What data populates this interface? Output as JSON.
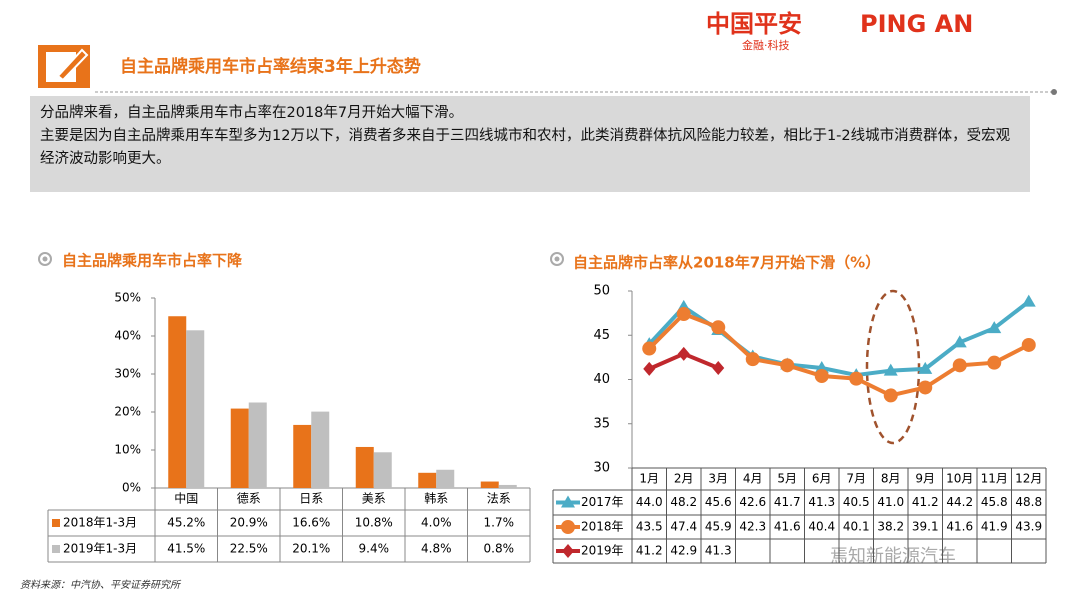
{
  "header": {
    "title": "自主品牌乘用车市占率结束3年上升态势",
    "logo_cn": "中国平安",
    "logo_en": "PING AN",
    "logo_sub": "金融·科技"
  },
  "summary": [
    "分品牌来看，自主品牌乘用车市占率在2018年7月开始大幅下滑。",
    "主要是因为自主品牌乘用车车型多为12万以下，消费者多来自于三四线城市和农村，此类消费群体抗风险能力较差，相比于1-2线城市消费群体，受宏观经济波动影响更大。"
  ],
  "chart_data": [
    {
      "type": "bar",
      "title": "自主品牌乘用车市占率下降",
      "categories": [
        "中国",
        "德系",
        "日系",
        "美系",
        "韩系",
        "法系"
      ],
      "series": [
        {
          "name": "2018年1-3月",
          "color": "#e8731a",
          "values": [
            45.2,
            20.9,
            16.6,
            10.8,
            4.0,
            1.7
          ],
          "value_labels": [
            "45.2%",
            "20.9%",
            "16.6%",
            "10.8%",
            "4.0%",
            "1.7%"
          ]
        },
        {
          "name": "2019年1-3月",
          "color": "#bfbfbf",
          "values": [
            41.5,
            22.5,
            20.1,
            9.4,
            4.8,
            0.8
          ],
          "value_labels": [
            "41.5%",
            "22.5%",
            "20.1%",
            "9.4%",
            "4.8%",
            "0.8%"
          ]
        }
      ],
      "ylim": [
        0,
        50
      ],
      "yticks": [
        {
          "value": 0,
          "label": "0%"
        },
        {
          "value": 10,
          "label": "10%"
        },
        {
          "value": 20,
          "label": "20%"
        },
        {
          "value": 30,
          "label": "30%"
        },
        {
          "value": 40,
          "label": "40%"
        },
        {
          "value": 50,
          "label": "50%"
        }
      ]
    },
    {
      "type": "line",
      "title": "自主品牌市占率从2018年7月开始下滑（%）",
      "categories": [
        "1月",
        "2月",
        "3月",
        "4月",
        "5月",
        "6月",
        "7月",
        "8月",
        "9月",
        "10月",
        "11月",
        "12月"
      ],
      "series": [
        {
          "name": "2017年",
          "color": "#4bacc6",
          "values": [
            44.0,
            48.2,
            45.6,
            42.6,
            41.7,
            41.3,
            40.5,
            41.0,
            41.2,
            44.2,
            45.8,
            48.8
          ],
          "value_labels": [
            "44.0",
            "48.2",
            "45.6",
            "42.6",
            "41.7",
            "41.3",
            "40.5",
            "41.0",
            "41.2",
            "44.2",
            "45.8",
            "48.8"
          ]
        },
        {
          "name": "2018年",
          "color": "#ed7d31",
          "values": [
            43.5,
            47.4,
            45.9,
            42.3,
            41.6,
            40.4,
            40.1,
            38.2,
            39.1,
            41.6,
            41.9,
            43.9
          ],
          "value_labels": [
            "43.5",
            "47.4",
            "45.9",
            "42.3",
            "41.6",
            "40.4",
            "40.1",
            "38.2",
            "39.1",
            "41.6",
            "41.9",
            "43.9"
          ]
        },
        {
          "name": "2019年",
          "color": "#c0282d",
          "values": [
            41.2,
            42.9,
            41.3,
            null,
            null,
            null,
            null,
            null,
            null,
            null,
            null,
            null
          ],
          "value_labels": [
            "41.2",
            "42.9",
            "41.3",
            null,
            null,
            null,
            null,
            null,
            null,
            null,
            null,
            null
          ]
        }
      ],
      "ylim": [
        30,
        50
      ],
      "yticks": [
        30,
        35,
        40,
        45,
        50
      ]
    }
  ],
  "source": "资料来源：中汽协、平安证券研究所",
  "watermark": "焉知新能源汽车"
}
